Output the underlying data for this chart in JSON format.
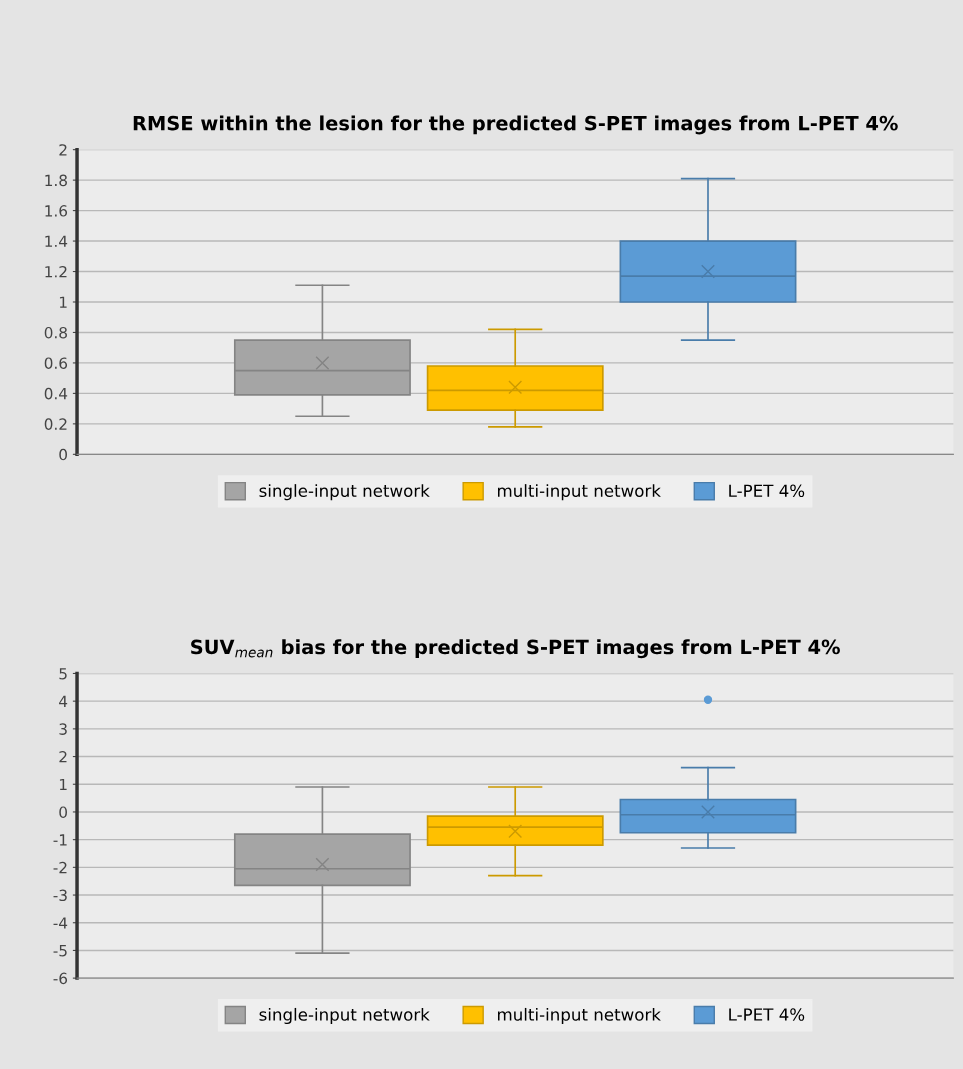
{
  "chart_data": [
    {
      "type": "box",
      "title": "RMSE within the lesion for the predicted S-PET images from L-PET 4%",
      "categories": [
        null
      ],
      "ylim": [
        0,
        2
      ],
      "yticks": [
        0,
        0.2,
        0.4,
        0.6,
        0.8,
        1,
        1.2,
        1.4,
        1.6,
        1.8,
        2
      ],
      "grid": "y",
      "legend": "bottom",
      "tick_labels": "y",
      "marker": "cross",
      "series": [
        {
          "name": "single-input network",
          "color": "#a5a5a5",
          "boxes": [
            {
              "low": 0.25,
              "q1": 0.39,
              "median": 0.55,
              "q3": 0.75,
              "high": 1.11,
              "mean": 0.6
            }
          ]
        },
        {
          "name": "multi-input network",
          "color": "#ffc000",
          "boxes": [
            {
              "low": 0.18,
              "q1": 0.29,
              "median": 0.42,
              "q3": 0.58,
              "high": 0.82,
              "mean": 0.44
            }
          ]
        },
        {
          "name": "L-PET 4%",
          "color": "#5b9bd5",
          "boxes": [
            {
              "low": 0.75,
              "q1": 1.0,
              "median": 1.17,
              "q3": 1.4,
              "high": 1.81,
              "mean": 1.2
            }
          ]
        }
      ]
    },
    {
      "type": "box",
      "title": "SUV$_{mean}$ bias for the predicted S-PET images from L-PET 4%",
      "categories": [
        null
      ],
      "ylim": [
        -6,
        5
      ],
      "yticks": [
        -6,
        -5,
        -4,
        -3,
        -2,
        -1,
        0,
        1,
        2,
        3,
        4,
        5
      ],
      "grid": "y",
      "legend": "bottom",
      "tick_labels": "y",
      "marker": "cross",
      "series": [
        {
          "name": "single-input network",
          "color": "#a5a5a5",
          "boxes": [
            {
              "low": -5.1,
              "q1": -2.65,
              "median": -2.05,
              "q3": -0.8,
              "high": 0.9,
              "mean": -1.9
            }
          ]
        },
        {
          "name": "multi-input network",
          "color": "#ffc000",
          "boxes": [
            {
              "low": -2.3,
              "q1": -1.2,
              "median": -0.55,
              "q3": -0.15,
              "high": 0.9,
              "mean": -0.7
            }
          ]
        },
        {
          "name": "L-PET 4%",
          "color": "#5b9bd5",
          "boxes": [
            {
              "low": -1.3,
              "q1": -0.75,
              "median": -0.1,
              "q3": 0.45,
              "high": 1.6,
              "mean": 0,
              "outliers": [
                4.05
              ]
            }
          ]
        }
      ]
    }
  ]
}
